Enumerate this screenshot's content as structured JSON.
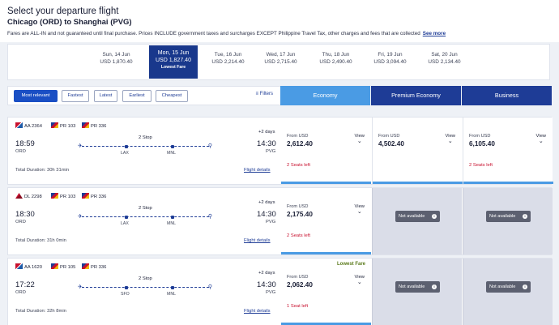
{
  "header": {
    "select_title": "Select your departure flight",
    "route_title": "Chicago (ORD) to Shanghai (PVG)",
    "fares_note": "Fares are ALL-IN and not guaranteed until final purchase. Prices INCLUDE government taxes and surcharges EXCEPT Philippine Travel Tax, other charges and fees that are collected",
    "see_more": "See more"
  },
  "dates": [
    {
      "day": "Sun, 14 Jun",
      "price": "USD 1,870.40",
      "note": ""
    },
    {
      "day": "Mon, 15 Jun",
      "price": "USD 1,827.40",
      "note": "Lowest Fare"
    },
    {
      "day": "Tue, 16 Jun",
      "price": "USD 2,214.40",
      "note": ""
    },
    {
      "day": "Wed, 17 Jun",
      "price": "USD 2,715.40",
      "note": ""
    },
    {
      "day": "Thu, 18 Jun",
      "price": "USD 2,490.40",
      "note": ""
    },
    {
      "day": "Fri, 19 Jun",
      "price": "USD 3,094.40",
      "note": ""
    },
    {
      "day": "Sat, 20 Jun",
      "price": "USD 2,134.40",
      "note": ""
    }
  ],
  "filters": {
    "buttons": [
      "Most relevant",
      "Fastest",
      "Latest",
      "Earliest",
      "Cheapest"
    ],
    "filters_label": "Filters"
  },
  "cabins": {
    "economy": "Economy",
    "premium": "Premium Economy",
    "business": "Business"
  },
  "common": {
    "from_usd": "From USD",
    "view": "View",
    "not_available": "Not available",
    "flight_details": "Flight details",
    "lowest_fare": "Lowest Fare"
  },
  "flights": [
    {
      "codes": [
        "AA 2364",
        "PR 103",
        "PR 336"
      ],
      "days": "+2 days",
      "dep_time": "18:59",
      "dep_code": "ORD",
      "arr_time": "14:30",
      "arr_code": "PVG",
      "stops": "2 Stop",
      "stop1": "LAX",
      "stop2": "MNL",
      "duration": "Total Duration: 30h 31min",
      "economy": {
        "price": "2,612.40",
        "seats": "2 Seats left"
      },
      "premium": {
        "price": "4,502.40",
        "seats": ""
      },
      "business": {
        "price": "6,105.40",
        "seats": "2 Seats left"
      }
    },
    {
      "codes": [
        "DL 2298",
        "PR 103",
        "PR 336"
      ],
      "days": "+2 days",
      "dep_time": "18:30",
      "dep_code": "ORD",
      "arr_time": "14:30",
      "arr_code": "PVG",
      "stops": "2 Stop",
      "stop1": "LAX",
      "stop2": "MNL",
      "duration": "Total Duration: 31h 0min",
      "economy": {
        "price": "2,175.40",
        "seats": "2 Seats left"
      }
    },
    {
      "codes": [
        "AA 1620",
        "PR 105",
        "PR 336"
      ],
      "days": "+2 days",
      "dep_time": "17:22",
      "dep_code": "ORD",
      "arr_time": "14:30",
      "arr_code": "PVG",
      "stops": "2 Stop",
      "stop1": "SFO",
      "stop2": "MNL",
      "duration": "Total Duration: 32h 8min",
      "economy": {
        "price": "2,062.40",
        "seats": "1 Seat left"
      }
    }
  ],
  "colors": {
    "navy": "#1e3c96",
    "economy": "#4a9be4",
    "seats_red": "#c8102e",
    "na_gray": "#dadde8"
  }
}
